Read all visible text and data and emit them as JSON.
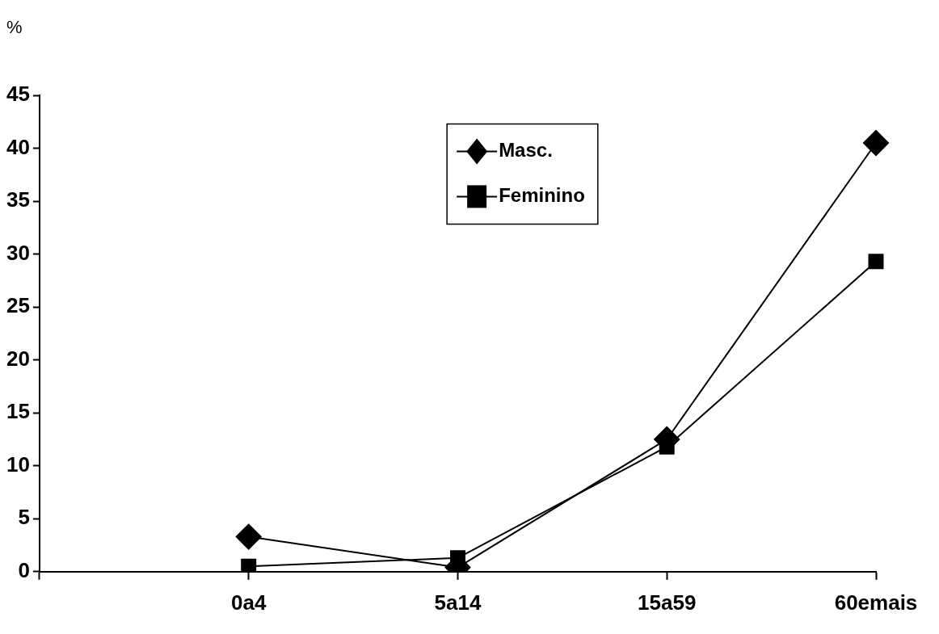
{
  "chart_data": {
    "type": "line",
    "ylabel": "%",
    "categories": [
      null,
      "0a4",
      "5a14",
      "15a59",
      "60emais"
    ],
    "series": [
      {
        "name": "Masc.",
        "color": "#000000",
        "marker": "diamond",
        "values": [
          null,
          3.3,
          0.4,
          12.5,
          40.5
        ]
      },
      {
        "name": "Feminino",
        "color": "#000000",
        "marker": "square",
        "values": [
          null,
          0.5,
          1.3,
          11.8,
          29.3
        ]
      }
    ],
    "ylim": [
      0,
      45
    ],
    "yticks": [
      0,
      5,
      10,
      15,
      20,
      25,
      30,
      35,
      40,
      45
    ],
    "grid": false,
    "legend": "top",
    "line_style": "solid"
  }
}
